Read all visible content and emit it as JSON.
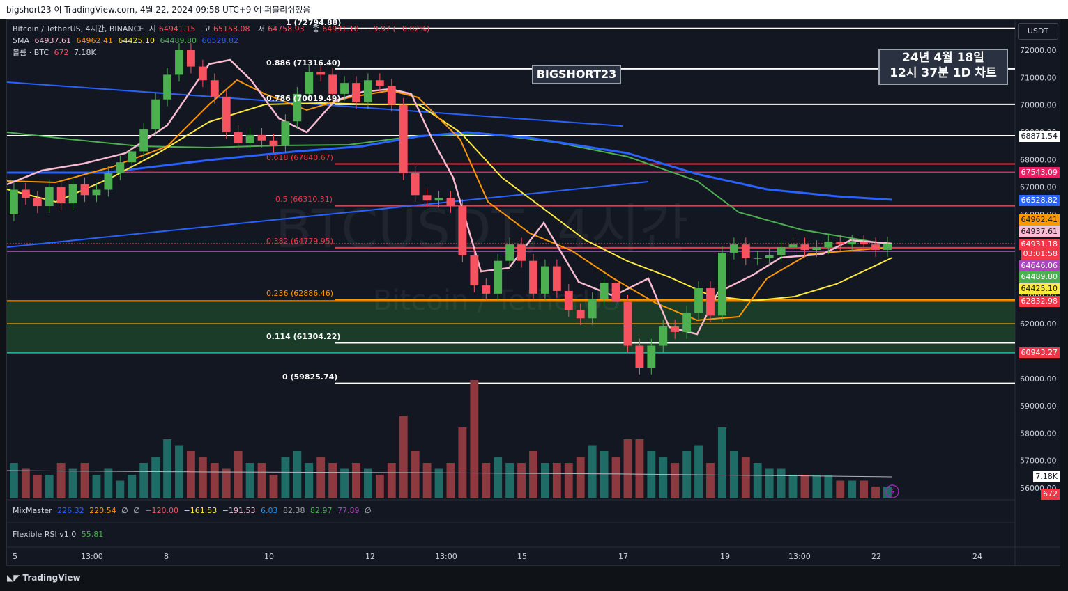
{
  "topbar": {
    "text": "bigshort23 이 TradingView.com, 4월 22, 2024 09:58 UTC+9 에 퍼블리쉬했음"
  },
  "legend": {
    "symbol": "Bitcoin / TetherUS, 4시간, BINANCE",
    "open_label": "시",
    "open": "64941.15",
    "high_label": "고",
    "high": "65158.08",
    "low_label": "저",
    "low": "64758.93",
    "close_label": "종",
    "close": "64931.18",
    "change": "−9.97 (−0.02%)",
    "ma_label": "5MA",
    "ma_values": [
      "64937.61",
      "64962.41",
      "64425.10",
      "64489.80",
      "66528.82"
    ],
    "volume_label": "볼륨 · BTC",
    "volume_values": [
      "672",
      "7.18K"
    ]
  },
  "watermarks": {
    "author": "BIGSHORT23",
    "date_line1": "24년 4월 18일",
    "date_line2": "12시 37분 1D 차트",
    "bg_symbol": "BTCUSDT, 4시간",
    "bg_name": "Bitcoin / TetherUS"
  },
  "fib_labels": [
    "1 (72794.88)",
    "0.886 (71316.40)",
    "0.786 (70019.49)",
    "0.618 (67840.67)",
    "0.5 (66310.31)",
    "0.382 (64779.95)",
    "0.236 (62886.46)",
    "0.114 (61304.22)",
    "0 (59825.74)"
  ],
  "price_axis": {
    "currency": "USDT",
    "ticks": [
      "72000.00",
      "71000.00",
      "70000.00",
      "69000.00",
      "68000.00",
      "67000.00",
      "66000.00",
      "65000.00",
      "64000.00",
      "63000.00",
      "62000.00",
      "61000.00",
      "60000.00",
      "59000.00",
      "58000.00",
      "57000.00",
      "56000.00"
    ],
    "tags": [
      {
        "text": "68871.54",
        "color": "#ffffff",
        "fg": "#131722"
      },
      {
        "text": "67543.09",
        "color": "#e91e63",
        "fg": "#ffffff"
      },
      {
        "text": "66528.82",
        "color": "#2962ff",
        "fg": "#ffffff"
      },
      {
        "text": "64962.41",
        "color": "#ff9800",
        "fg": "#131722"
      },
      {
        "text": "64937.61",
        "color": "#f8bbd0",
        "fg": "#131722"
      },
      {
        "text": "64931.18",
        "color": "#f23645",
        "fg": "#ffffff"
      },
      {
        "text": "03:01:58",
        "color": "#f23645",
        "fg": "#ffffff"
      },
      {
        "text": "64646.06",
        "color": "#ab47bc",
        "fg": "#ffffff"
      },
      {
        "text": "64489.80",
        "color": "#4caf50",
        "fg": "#ffffff"
      },
      {
        "text": "64425.10",
        "color": "#ffeb3b",
        "fg": "#131722"
      },
      {
        "text": "62832.98",
        "color": "#f23645",
        "fg": "#ffffff"
      },
      {
        "text": "60943.27",
        "color": "#f23645",
        "fg": "#ffffff"
      },
      {
        "text": "7.18K",
        "color": "#ffffff",
        "fg": "#131722"
      },
      {
        "text": "672",
        "color": "#f23645",
        "fg": "#ffffff"
      }
    ]
  },
  "time_axis": [
    "5",
    "13:00",
    "8",
    "10",
    "12",
    "13:00",
    "15",
    "17",
    "19",
    "13:00",
    "22",
    "24"
  ],
  "indicators": {
    "mixmaster": {
      "label": "MixMaster",
      "values": [
        "226.32",
        "220.54",
        "∅",
        "∅",
        "−120.00",
        "−161.53",
        "−191.53",
        "6.03",
        "82.38",
        "82.97",
        "77.89",
        "∅"
      ]
    },
    "rsi": {
      "label": "Flexible RSI v1.0",
      "value": "55.81"
    }
  },
  "footer": {
    "logo_text": "TradingView"
  },
  "colors": {
    "bg": "#131722",
    "up": "#4caf50",
    "down": "#f7525f",
    "ma_pink": "#f8bbd0",
    "ma_orange": "#ff9800",
    "ma_yellow": "#ffeb3b",
    "ma_green": "#4caf50",
    "ma_blue": "#2962ff"
  },
  "chart_data": {
    "type": "candlestick",
    "ylim": [
      55800,
      73000
    ],
    "candles_close": [
      66900,
      66600,
      66300,
      67000,
      66400,
      67100,
      66700,
      66900,
      67500,
      67900,
      68300,
      69100,
      70200,
      71100,
      72000,
      71400,
      70900,
      70300,
      69000,
      68600,
      68900,
      68700,
      68500,
      69400,
      70400,
      71200,
      71100,
      70400,
      70800,
      70100,
      70900,
      70700,
      70000,
      67500,
      66700,
      66500,
      66600,
      66300,
      64500,
      63400,
      63100,
      64300,
      64900,
      64300,
      63100,
      64100,
      63200,
      62500,
      62200,
      62900,
      63500,
      62800,
      61200,
      60400,
      61200,
      61900,
      61700,
      62400,
      63300,
      62300,
      64600,
      64900,
      64400,
      64400,
      64500,
      64800,
      64900,
      64700,
      64800,
      65000,
      64900,
      65000,
      64900,
      64700,
      64931
    ]
  }
}
